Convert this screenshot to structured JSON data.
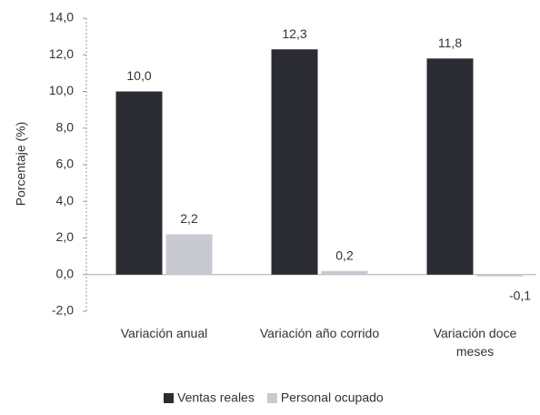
{
  "chart_data": {
    "type": "bar",
    "y_label": "Porcentaje (%)",
    "categories": [
      "Variación anual",
      "Variación año corrido",
      "Variación doce meses"
    ],
    "series": [
      {
        "name": "Ventas reales",
        "color": "#2b2b34",
        "values": [
          10.0,
          12.3,
          11.8
        ],
        "value_labels": [
          "10,0",
          "12,3",
          "11,8"
        ]
      },
      {
        "name": "Personal ocupado",
        "color": "#c9c9d2",
        "values": [
          2.2,
          0.2,
          -0.1
        ],
        "value_labels": [
          "2,2",
          "0,2",
          "-0,1"
        ]
      }
    ],
    "ylim": [
      -2,
      14
    ],
    "yticks": [
      {
        "value": -2,
        "label": "-2,0"
      },
      {
        "value": 0,
        "label": "0,0"
      },
      {
        "value": 2,
        "label": "2,0"
      },
      {
        "value": 4,
        "label": "4,0"
      },
      {
        "value": 6,
        "label": "6,0"
      },
      {
        "value": 8,
        "label": "8,0"
      },
      {
        "value": 10,
        "label": "10,0"
      },
      {
        "value": 12,
        "label": "12,0"
      },
      {
        "value": 14,
        "label": "14,0"
      }
    ],
    "legend": "bottom"
  }
}
